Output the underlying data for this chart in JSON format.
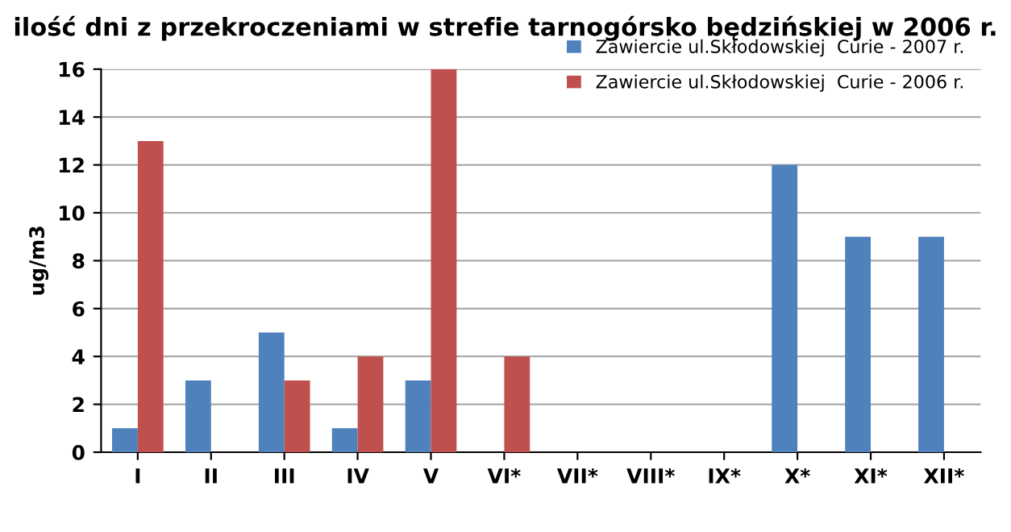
{
  "chart_data": {
    "type": "bar",
    "title": "ilość dni z przekroczeniami w strefie tarnogórsko będzińskiej w 2006 r.",
    "ylabel": "ug/m3",
    "categories": [
      "I",
      "II",
      "III",
      "IV",
      "V",
      "VI*",
      "VII*",
      "VIII*",
      "IX*",
      "X*",
      "XI*",
      "XII*"
    ],
    "series": [
      {
        "name": "Zawiercie ul.Skłodowskiej  Curie - 2007 r.",
        "color": "#4f81bd",
        "values": [
          1,
          3,
          5,
          1,
          3,
          0,
          0,
          0,
          0,
          12,
          9,
          9
        ]
      },
      {
        "name": "Zawiercie ul.Skłodowskiej  Curie - 2006 r.",
        "color": "#c0504d",
        "values": [
          13,
          0,
          3,
          4,
          16,
          4,
          0,
          0,
          0,
          0,
          0,
          0
        ]
      }
    ],
    "ylim": [
      0,
      16
    ],
    "yticks": [
      0,
      2,
      4,
      6,
      8,
      10,
      12,
      14,
      16
    ],
    "grid": "y",
    "legend": "top right"
  }
}
